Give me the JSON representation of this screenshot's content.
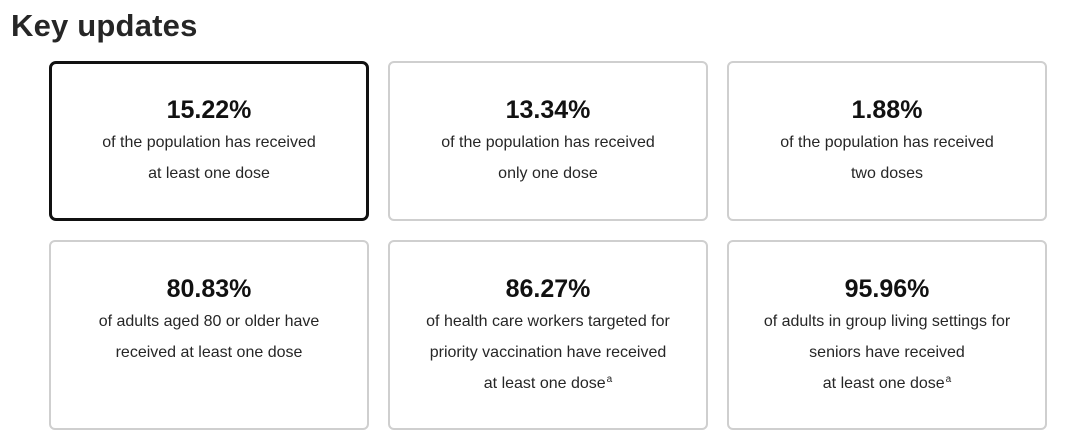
{
  "header": {
    "title": "Key updates"
  },
  "cards": [
    {
      "value": "15.22%",
      "lines": [
        "of the population has received",
        "at least one dose"
      ],
      "note": ""
    },
    {
      "value": "13.34%",
      "lines": [
        "of the population has received",
        "only one dose"
      ],
      "note": ""
    },
    {
      "value": "1.88%",
      "lines": [
        "of the population has received",
        "two doses"
      ],
      "note": ""
    },
    {
      "value": "80.83%",
      "lines": [
        "of adults aged 80 or older have",
        "received at least one dose"
      ],
      "note": ""
    },
    {
      "value": "86.27%",
      "lines": [
        "of health care workers targeted for",
        "priority vaccination have received",
        "at least one dose"
      ],
      "note": "a"
    },
    {
      "value": "95.96%",
      "lines": [
        "of adults in group living settings for",
        "seniors have received",
        "at least one dose"
      ],
      "note": "a"
    }
  ]
}
